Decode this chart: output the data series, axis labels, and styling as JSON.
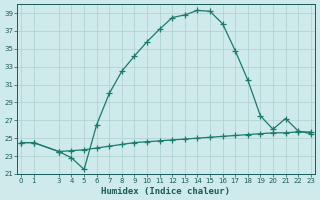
{
  "title": "",
  "xlabel": "Humidex (Indice chaleur)",
  "x_line1": [
    0,
    1,
    3,
    4,
    5,
    6,
    7,
    8,
    9,
    10,
    11,
    12,
    13,
    14,
    15,
    16,
    17,
    18,
    19,
    20,
    21,
    22,
    23
  ],
  "y_line1": [
    24.5,
    24.5,
    23.5,
    22.8,
    21.5,
    26.5,
    30.0,
    32.5,
    34.2,
    35.8,
    37.2,
    38.5,
    38.8,
    39.3,
    39.2,
    37.8,
    34.8,
    31.5,
    27.5,
    26.0,
    27.2,
    25.8,
    25.5
  ],
  "x_line2": [
    0,
    1,
    3,
    4,
    5,
    6,
    7,
    8,
    9,
    10,
    11,
    12,
    13,
    14,
    15,
    16,
    17,
    18,
    19,
    20,
    21,
    22,
    23
  ],
  "y_line2": [
    24.5,
    24.5,
    23.5,
    23.6,
    23.7,
    23.9,
    24.1,
    24.3,
    24.5,
    24.6,
    24.7,
    24.8,
    24.9,
    25.0,
    25.1,
    25.2,
    25.3,
    25.4,
    25.5,
    25.6,
    25.6,
    25.7,
    25.7
  ],
  "line_color": "#1a7a6e",
  "bg_color": "#ceeaea",
  "grid_color": "#aed0d0",
  "text_color": "#1a5a5a",
  "xlim": [
    -0.3,
    23.3
  ],
  "ylim": [
    21,
    40
  ],
  "yticks": [
    21,
    23,
    25,
    27,
    29,
    31,
    33,
    35,
    37,
    39
  ],
  "xticks": [
    0,
    1,
    3,
    4,
    5,
    6,
    7,
    8,
    9,
    10,
    11,
    12,
    13,
    14,
    15,
    16,
    17,
    18,
    19,
    20,
    21,
    22,
    23
  ],
  "xtick_labels": [
    "0",
    "1",
    "3",
    "4",
    "5",
    "6",
    "7",
    "8",
    "9",
    "10",
    "11",
    "12",
    "13",
    "14",
    "15",
    "16",
    "17",
    "18",
    "19",
    "20",
    "21",
    "22",
    "23"
  ]
}
